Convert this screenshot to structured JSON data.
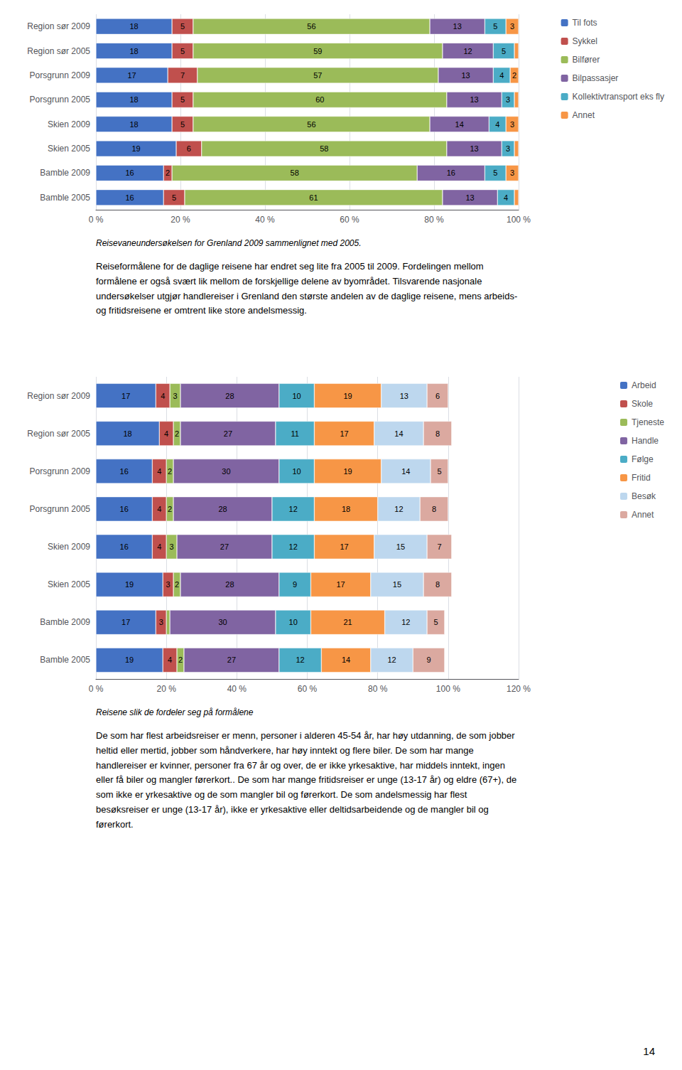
{
  "chart_data": [
    {
      "type": "bar",
      "orientation": "horizontal",
      "stacked": true,
      "data_labels": true,
      "grid": true,
      "legend": "right",
      "categories": [
        "Region sør 2009",
        "Region sør 2005",
        "Porsgrunn 2009",
        "Porsgrunn 2005",
        "Skien 2009",
        "Skien 2005",
        "Bamble 2009",
        "Bamble 2005"
      ],
      "series": [
        {
          "name": "Til fots",
          "color": "#4472C4",
          "values": [
            18,
            18,
            17,
            18,
            18,
            19,
            16,
            16
          ]
        },
        {
          "name": "Sykkel",
          "color": "#C0504D",
          "values": [
            5,
            5,
            7,
            5,
            5,
            6,
            2,
            5
          ]
        },
        {
          "name": "Bilfører",
          "color": "#9BBB59",
          "values": [
            56,
            59,
            57,
            60,
            56,
            58,
            58,
            61
          ]
        },
        {
          "name": "Bilpassasjer",
          "color": "#8064A2",
          "values": [
            13,
            12,
            13,
            13,
            14,
            13,
            16,
            13
          ]
        },
        {
          "name": "Kollektivtransport eks fly",
          "color": "#4BACC6",
          "values": [
            5,
            5,
            4,
            3,
            4,
            3,
            5,
            4
          ]
        },
        {
          "name": "Annet",
          "color": "#F79646",
          "values": [
            3,
            1,
            2,
            1,
            3,
            1,
            3,
            1
          ],
          "value_labels": [
            "3",
            null,
            "2",
            null,
            "3",
            null,
            "3",
            null
          ]
        }
      ],
      "xlim": [
        0,
        100
      ],
      "xticks": [
        {
          "value": 0,
          "label": "0 %"
        },
        {
          "value": 20,
          "label": "20 %"
        },
        {
          "value": 40,
          "label": "40 %"
        },
        {
          "value": 60,
          "label": "60 %"
        },
        {
          "value": 80,
          "label": "80 %"
        },
        {
          "value": 100,
          "label": "100 %"
        }
      ],
      "annotations": [
        "Reisevaneundersøkelsen for Grenland 2009 sammenlignet med 2005.",
        "Reiseformålene for de daglige reisene har endret seg lite fra 2005 til 2009. Fordelingen mellom\nformålene er også svært lik mellom de forskjellige delene av byområdet. Tilsvarende nasjonale\nundersøkelser utgjør handlereiser i Grenland den største andelen av de daglige reisene, mens arbeids-\nog fritidsreisene er omtrent like store andelsmessig."
      ]
    },
    {
      "type": "bar",
      "orientation": "horizontal",
      "stacked": true,
      "data_labels": true,
      "grid": true,
      "legend": "right",
      "categories": [
        "Region sør 2009",
        "Region sør 2005",
        "Porsgrunn 2009",
        "Porsgrunn 2005",
        "Skien 2009",
        "Skien 2005",
        "Bamble 2009",
        "Bamble 2005"
      ],
      "series": [
        {
          "name": "Arbeid",
          "color": "#4472C4",
          "values": [
            17,
            18,
            16,
            16,
            16,
            19,
            17,
            19
          ]
        },
        {
          "name": "Skole",
          "color": "#C0504D",
          "values": [
            4,
            4,
            4,
            4,
            4,
            3,
            3,
            4
          ]
        },
        {
          "name": "Tjeneste",
          "color": "#9BBB59",
          "values": [
            3,
            2,
            2,
            2,
            3,
            2,
            1,
            2
          ],
          "value_labels": [
            "3",
            "2",
            "2",
            "2",
            "3",
            "2",
            null,
            "2"
          ]
        },
        {
          "name": "Handle",
          "color": "#8064A2",
          "values": [
            28,
            27,
            30,
            28,
            27,
            28,
            30,
            27
          ]
        },
        {
          "name": "Følge",
          "color": "#4BACC6",
          "values": [
            10,
            11,
            10,
            12,
            12,
            9,
            10,
            12
          ]
        },
        {
          "name": "Fritid",
          "color": "#F79646",
          "values": [
            19,
            17,
            19,
            18,
            17,
            17,
            21,
            14
          ]
        },
        {
          "name": "Besøk",
          "color": "#BDD7EE",
          "values": [
            13,
            14,
            14,
            12,
            15,
            15,
            12,
            12
          ]
        },
        {
          "name": "Annet",
          "color": "#DBA9A0",
          "values": [
            6,
            8,
            5,
            8,
            7,
            8,
            5,
            9
          ]
        }
      ],
      "xlim": [
        0,
        120
      ],
      "xticks": [
        {
          "value": 0,
          "label": "0 %"
        },
        {
          "value": 20,
          "label": "20 %"
        },
        {
          "value": 40,
          "label": "40 %"
        },
        {
          "value": 60,
          "label": "60 %"
        },
        {
          "value": 80,
          "label": "80 %"
        },
        {
          "value": 100,
          "label": "100 %"
        },
        {
          "value": 120,
          "label": "120 %"
        }
      ],
      "annotations": [
        "Reisene slik de fordeler seg på formålene",
        "De som har flest arbeidsreiser er menn, personer i alderen 45-54 år, har høy utdanning, de som jobber\nheltid eller mertid, jobber som håndverkere, har høy inntekt og flere biler. De som har mange\nhandlereiser er kvinner, personer fra 67 år og over, de er ikke yrkesaktive, har middels inntekt, ingen\neller få biler og mangler førerkort.. De som har mange fritidsreiser er unge (13-17 år) og eldre (67+), de\nsom ikke er yrkesaktive og de som mangler bil og førerkort. De som andelsmessig har flest\nbesøksreiser er unge (13-17 år), ikke er yrkesaktive eller deltidsarbeidende og de mangler bil og\nførerkort.",
        "14"
      ]
    }
  ]
}
